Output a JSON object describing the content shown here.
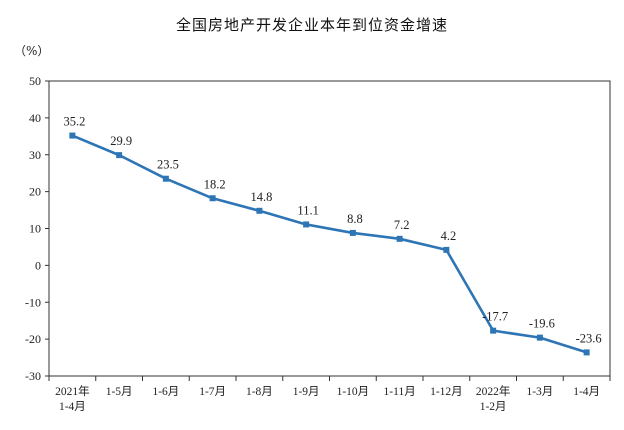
{
  "chart_data": {
    "type": "line",
    "title": "全国房地产开发企业本年到位资金增速",
    "unit_label": "（%）",
    "categories": [
      [
        "2021年",
        "1-4月"
      ],
      [
        "1-5月"
      ],
      [
        "1-6月"
      ],
      [
        "1-7月"
      ],
      [
        "1-8月"
      ],
      [
        "1-9月"
      ],
      [
        "1-10月"
      ],
      [
        "1-11月"
      ],
      [
        "1-12月"
      ],
      [
        "2022年",
        "1-2月"
      ],
      [
        "1-3月"
      ],
      [
        "1-4月"
      ]
    ],
    "values": [
      35.2,
      29.9,
      23.5,
      18.2,
      14.8,
      11.1,
      8.8,
      7.2,
      4.2,
      -17.7,
      -19.6,
      -23.6
    ],
    "data_labels": [
      "35.2",
      "29.9",
      "23.5",
      "18.2",
      "14.8",
      "11.1",
      "8.8",
      "7.2",
      "4.2",
      "-17.7",
      "-19.6",
      "-23.6"
    ],
    "yticks": [
      "50",
      "40",
      "30",
      "20",
      "10",
      "0",
      "-10",
      "-20",
      "-30"
    ],
    "ylim": [
      -30,
      50
    ],
    "grid": false,
    "line_color": "#2E75B6"
  }
}
